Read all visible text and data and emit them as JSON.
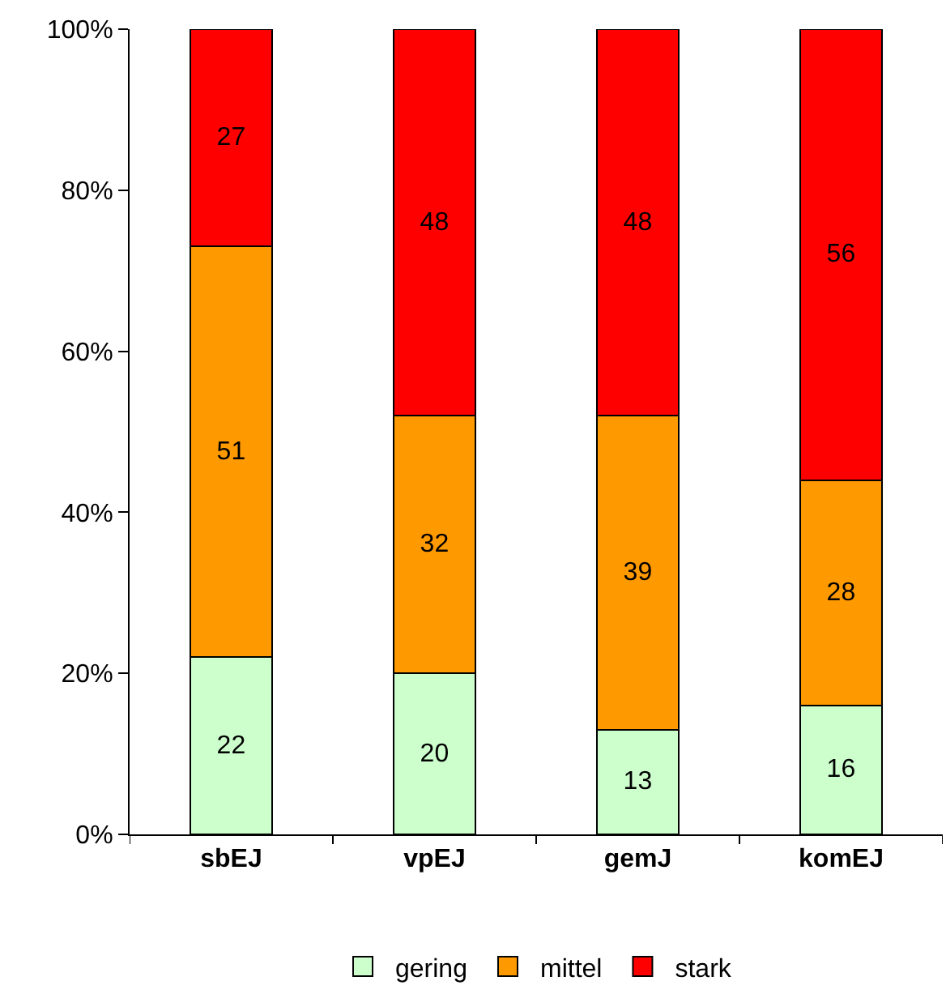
{
  "chart_data": {
    "type": "bar",
    "stacked": true,
    "categories": [
      "sbEJ",
      "vpEJ",
      "gemJ",
      "komEJ"
    ],
    "series": [
      {
        "name": "gering",
        "color": "#ccffcc",
        "values": [
          22,
          20,
          13,
          16
        ]
      },
      {
        "name": "mittel",
        "color": "#ff9900",
        "values": [
          51,
          32,
          39,
          28
        ]
      },
      {
        "name": "stark",
        "color": "#ff0000",
        "values": [
          27,
          48,
          48,
          56
        ]
      }
    ],
    "ylim": [
      0,
      100
    ],
    "yticks": [
      {
        "value": 0,
        "label": "0%"
      },
      {
        "value": 20,
        "label": "20%"
      },
      {
        "value": 40,
        "label": "40%"
      },
      {
        "value": 60,
        "label": "60%"
      },
      {
        "value": 80,
        "label": "80%"
      },
      {
        "value": 100,
        "label": "100%"
      }
    ],
    "data_labels": true,
    "legend": "bottom"
  }
}
